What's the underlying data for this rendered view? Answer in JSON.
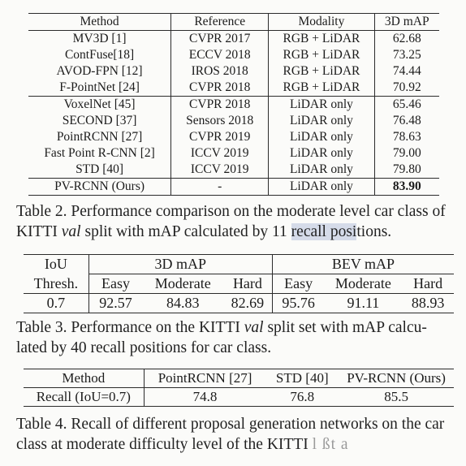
{
  "table2": {
    "headers": [
      "Method",
      "Reference",
      "Modality",
      "3D mAP"
    ],
    "group1": [
      [
        "MV3D [1]",
        "CVPR 2017",
        "RGB + LiDAR",
        "62.68"
      ],
      [
        "ContFuse[18]",
        "ECCV 2018",
        "RGB + LiDAR",
        "73.25"
      ],
      [
        "AVOD-FPN [12]",
        "IROS 2018",
        "RGB + LiDAR",
        "74.44"
      ],
      [
        "F-PointNet [24]",
        "CVPR 2018",
        "RGB + LiDAR",
        "70.92"
      ]
    ],
    "group2": [
      [
        "VoxelNet [45]",
        "CVPR 2018",
        "LiDAR only",
        "65.46"
      ],
      [
        "SECOND [37]",
        "Sensors 2018",
        "LiDAR only",
        "76.48"
      ],
      [
        "PointRCNN [27]",
        "CVPR 2019",
        "LiDAR only",
        "78.63"
      ],
      [
        "Fast Point R-CNN [2]",
        "ICCV 2019",
        "LiDAR only",
        "79.00"
      ],
      [
        "STD [40]",
        "ICCV 2019",
        "LiDAR only",
        "79.80"
      ]
    ],
    "ours": [
      "PV-RCNN (Ours)",
      "-",
      "LiDAR only",
      "83.90"
    ]
  },
  "caption2": {
    "prefix": "Table 2. Performance comparison on the moderate level car class of KITTI ",
    "val": "val",
    "middle": " split with mAP calculated by 11 ",
    "highlight": "recall posi",
    "suffix": "tions."
  },
  "table3": {
    "iou_header_1": "IoU",
    "iou_header_2": "Thresh.",
    "group_3d": "3D mAP",
    "group_bev": "BEV mAP",
    "sub_headers": [
      "Easy",
      "Moderate",
      "Hard",
      "Easy",
      "Moderate",
      "Hard"
    ],
    "row": [
      "0.7",
      "92.57",
      "84.83",
      "82.69",
      "95.76",
      "91.11",
      "88.93"
    ]
  },
  "caption3": {
    "prefix": "Table 3. Performance on the KITTI ",
    "val": "val",
    "suffix": " split set with mAP calcu-lated by 40 recall positions for car class."
  },
  "table4": {
    "headers": [
      "Method",
      "PointRCNN [27]",
      "STD [40]",
      "PV-RCNN (Ours)"
    ],
    "row": [
      "Recall (IoU=0.7)",
      "74.8",
      "76.8",
      "85.5"
    ]
  },
  "caption4": {
    "text": "Table 4. Recall of different proposal generation networks on the car class at moderate difficulty level of the KITTI",
    "smudge": "l  ßt  a"
  }
}
